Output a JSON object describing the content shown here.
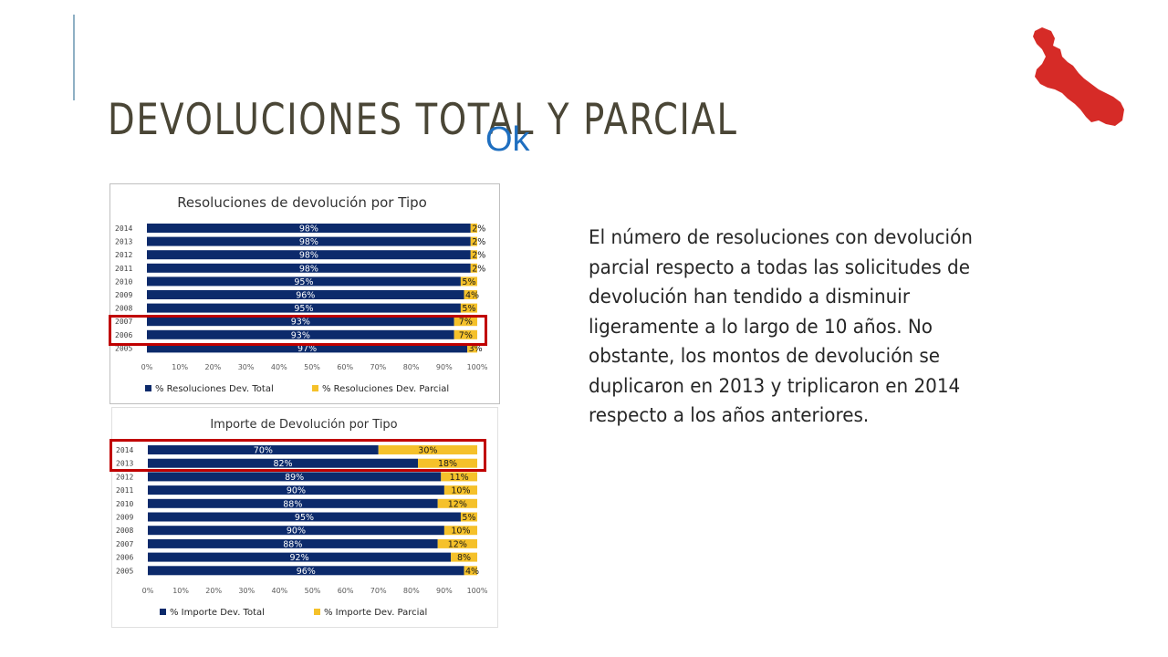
{
  "slide": {
    "title": "DEVOLUCIONES TOTAL Y PARCIAL",
    "ok_note": "Ok",
    "body_text": "El número de resoluciones con devolución parcial respecto a todas las solicitudes de devolución han tendido a disminuir ligeramente a lo largo de 10 años. No obstante, los montos de devolución se duplicaron en 2013 y triplicaron en 2014 respecto a los años anteriores."
  },
  "colors": {
    "total": "#0c2a6b",
    "parcial": "#f5c12a",
    "highlight": "#c00000",
    "map": "#d62b27",
    "accent_line": "#8fb0c4"
  },
  "map_icon": "veracruz-state-map-icon",
  "chart_data": [
    {
      "type": "bar",
      "orientation": "horizontal",
      "stacked": true,
      "title": "Resoluciones de devolución por Tipo",
      "categories": [
        "2014",
        "2013",
        "2012",
        "2011",
        "2010",
        "2009",
        "2008",
        "2007",
        "2006",
        "2005"
      ],
      "series": [
        {
          "name": "% Resoluciones Dev. Total",
          "values": [
            98,
            98,
            98,
            98,
            95,
            96,
            95,
            93,
            93,
            97
          ],
          "labels": [
            "98%",
            "98%",
            "98%",
            "98%",
            "95%",
            "96%",
            "95%",
            "93%",
            "93%",
            "97%"
          ]
        },
        {
          "name": "% Resoluciones Dev. Parcial",
          "values": [
            2,
            2,
            2,
            2,
            5,
            4,
            5,
            7,
            7,
            3
          ],
          "labels": [
            "2%",
            "2%",
            "2%",
            "2%",
            "5%",
            "4%",
            "5%",
            "7%",
            "7%",
            "3%"
          ]
        }
      ],
      "x_ticks": [
        "0%",
        "10%",
        "20%",
        "30%",
        "40%",
        "50%",
        "60%",
        "70%",
        "80%",
        "90%",
        "100%"
      ],
      "xlim": [
        0,
        100
      ],
      "legend_position": "bottom",
      "highlighted_categories": [
        "2007",
        "2006"
      ]
    },
    {
      "type": "bar",
      "orientation": "horizontal",
      "stacked": true,
      "title": "Importe de Devolución por Tipo",
      "categories": [
        "2014",
        "2013",
        "2012",
        "2011",
        "2010",
        "2009",
        "2008",
        "2007",
        "2006",
        "2005"
      ],
      "series": [
        {
          "name": "% Importe Dev. Total",
          "values": [
            70,
            82,
            89,
            90,
            88,
            95,
            90,
            88,
            92,
            96
          ],
          "labels": [
            "70%",
            "82%",
            "89%",
            "90%",
            "88%",
            "95%",
            "90%",
            "88%",
            "92%",
            "96%"
          ]
        },
        {
          "name": "% Importe Dev. Parcial",
          "values": [
            30,
            18,
            11,
            10,
            12,
            5,
            10,
            12,
            8,
            4
          ],
          "labels": [
            "30%",
            "18%",
            "11%",
            "10%",
            "12%",
            "5%",
            "10%",
            "12%",
            "8%",
            "4%"
          ]
        }
      ],
      "x_ticks": [
        "0%",
        "10%",
        "20%",
        "30%",
        "40%",
        "50%",
        "60%",
        "70%",
        "80%",
        "90%",
        "100%"
      ],
      "xlim": [
        0,
        100
      ],
      "legend_position": "bottom",
      "highlighted_categories": [
        "2014",
        "2013"
      ]
    }
  ]
}
